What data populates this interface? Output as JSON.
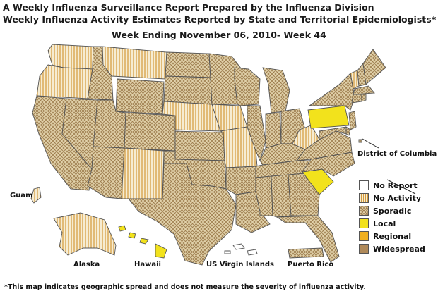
{
  "title_line1": "A Weekly Influenza Surveillance Report Prepared by the Influenza Division",
  "title_line2": "Weekly Influenza Activity Estimates Reported by State and Territorial Epidemiologists*",
  "week": "Week Ending November 06, 2010- Week 44",
  "labels": {
    "dc": "District of Columbia",
    "guam": "Guam",
    "alaska": "Alaska",
    "hawaii": "Hawaii",
    "usvi": "US Virgin Islands",
    "pr": "Puerto Rico"
  },
  "legend": [
    {
      "key": "no_report",
      "label": "No Report",
      "color": "#ffffff",
      "pattern": "none"
    },
    {
      "key": "no_activity",
      "label": "No Activity",
      "color": "#f1e6c8",
      "pattern": "vertical"
    },
    {
      "key": "sporadic",
      "label": "Sporadic",
      "color": "#dcc79a",
      "pattern": "cross"
    },
    {
      "key": "local",
      "label": "Local",
      "color": "#f2e21c",
      "pattern": "none"
    },
    {
      "key": "regional",
      "label": "Regional",
      "color": "#f0b020",
      "pattern": "none"
    },
    {
      "key": "widespread",
      "label": "Widespread",
      "color": "#b08a5a",
      "pattern": "none"
    }
  ],
  "states": {
    "WA": "no_activity",
    "OR": "no_activity",
    "CA": "sporadic",
    "NV": "sporadic",
    "ID": "sporadic",
    "MT": "no_activity",
    "WY": "sporadic",
    "UT": "sporadic",
    "AZ": "sporadic",
    "NM": "no_activity",
    "CO": "sporadic",
    "ND": "sporadic",
    "SD": "sporadic",
    "NE": "no_activity",
    "KS": "sporadic",
    "OK": "sporadic",
    "TX": "sporadic",
    "MN": "sporadic",
    "IA": "no_activity",
    "MO": "no_activity",
    "AR": "sporadic",
    "LA": "sporadic",
    "WI": "sporadic",
    "IL": "sporadic",
    "MI": "sporadic",
    "IN": "sporadic",
    "OH": "sporadic",
    "KY": "sporadic",
    "TN": "sporadic",
    "MS": "sporadic",
    "AL": "sporadic",
    "GA": "sporadic",
    "FL": "sporadic",
    "SC": "local",
    "NC": "sporadic",
    "VA": "sporadic",
    "WV": "no_activity",
    "PA": "local",
    "NY": "sporadic",
    "VT": "no_activity",
    "NH": "sporadic",
    "ME": "sporadic",
    "MA": "sporadic",
    "NJ": "sporadic",
    "MD": "sporadic",
    "DE": "sporadic",
    "CT": "sporadic",
    "RI": "sporadic",
    "DC": "sporadic",
    "AK": "no_activity",
    "HI": "local",
    "GU": "no_activity",
    "PR": "sporadic",
    "VI": "no_report"
  },
  "footnote": "*This map indicates geographic spread and does not measure the severity of influenza activity."
}
